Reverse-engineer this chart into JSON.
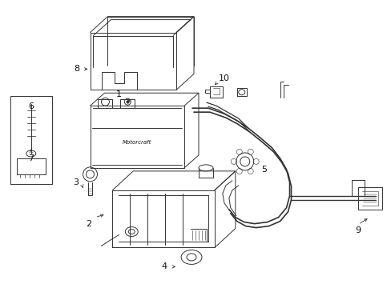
{
  "bg_color": "#ffffff",
  "lc": "#333333",
  "lw": 0.7,
  "fig_w": 4.89,
  "fig_h": 3.6,
  "dpi": 100
}
